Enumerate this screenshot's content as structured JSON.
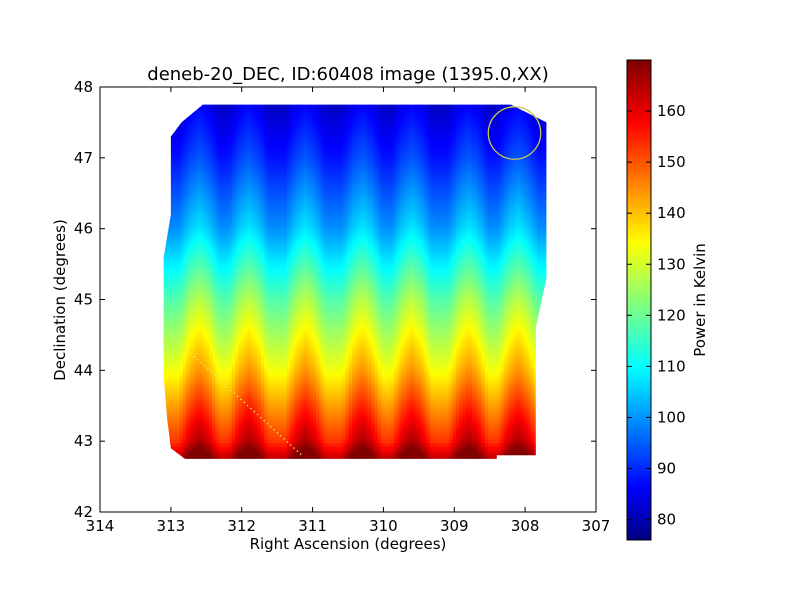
{
  "chart_data": {
    "type": "heatmap",
    "title": "deneb-20_DEC, ID:60408 image (1395.0,XX)",
    "xlabel": "Right Ascension (degrees)",
    "ylabel": "Declination (degrees)",
    "xlim": [
      314,
      307
    ],
    "ylim": [
      42,
      48
    ],
    "x_ticks": [
      "314",
      "313",
      "312",
      "311",
      "310",
      "309",
      "308",
      "307"
    ],
    "y_ticks": [
      "42",
      "43",
      "44",
      "45",
      "46",
      "47",
      "48"
    ],
    "colormap": "jet",
    "colorbar": {
      "label": "Power in Kelvin",
      "range": [
        76,
        170
      ],
      "ticks": [
        "80",
        "90",
        "100",
        "110",
        "120",
        "130",
        "140",
        "150",
        "160"
      ]
    },
    "region_outline_ra_dec": [
      [
        312.55,
        47.75
      ],
      [
        308.2,
        47.75
      ],
      [
        307.7,
        47.5
      ],
      [
        307.7,
        45.3
      ],
      [
        307.85,
        44.6
      ],
      [
        307.85,
        42.8
      ],
      [
        308.4,
        42.8
      ],
      [
        308.4,
        42.75
      ],
      [
        312.8,
        42.75
      ],
      [
        313.0,
        42.9
      ],
      [
        313.05,
        43.3
      ],
      [
        313.1,
        43.9
      ],
      [
        313.1,
        45.6
      ],
      [
        313.0,
        46.2
      ],
      [
        313.0,
        47.3
      ],
      [
        312.85,
        47.5
      ]
    ],
    "power_field": {
      "rows_dec": [
        47.75,
        47.0,
        46.0,
        45.0,
        44.0,
        43.0,
        42.75
      ],
      "row_power_kelvin": [
        83,
        90,
        102,
        120,
        135,
        155,
        166
      ],
      "ripple_columns_ra": [
        312.6,
        311.9,
        311.1,
        310.3,
        309.6,
        308.8,
        308.1
      ]
    },
    "circle_marker": {
      "center": [
        308.15,
        47.35
      ],
      "radius_deg": 0.37,
      "color": "#c8c850"
    },
    "dotted_line": {
      "from": [
        313.0,
        44.5
      ],
      "to": [
        311.15,
        42.8
      ],
      "color": "#e8e870"
    }
  }
}
